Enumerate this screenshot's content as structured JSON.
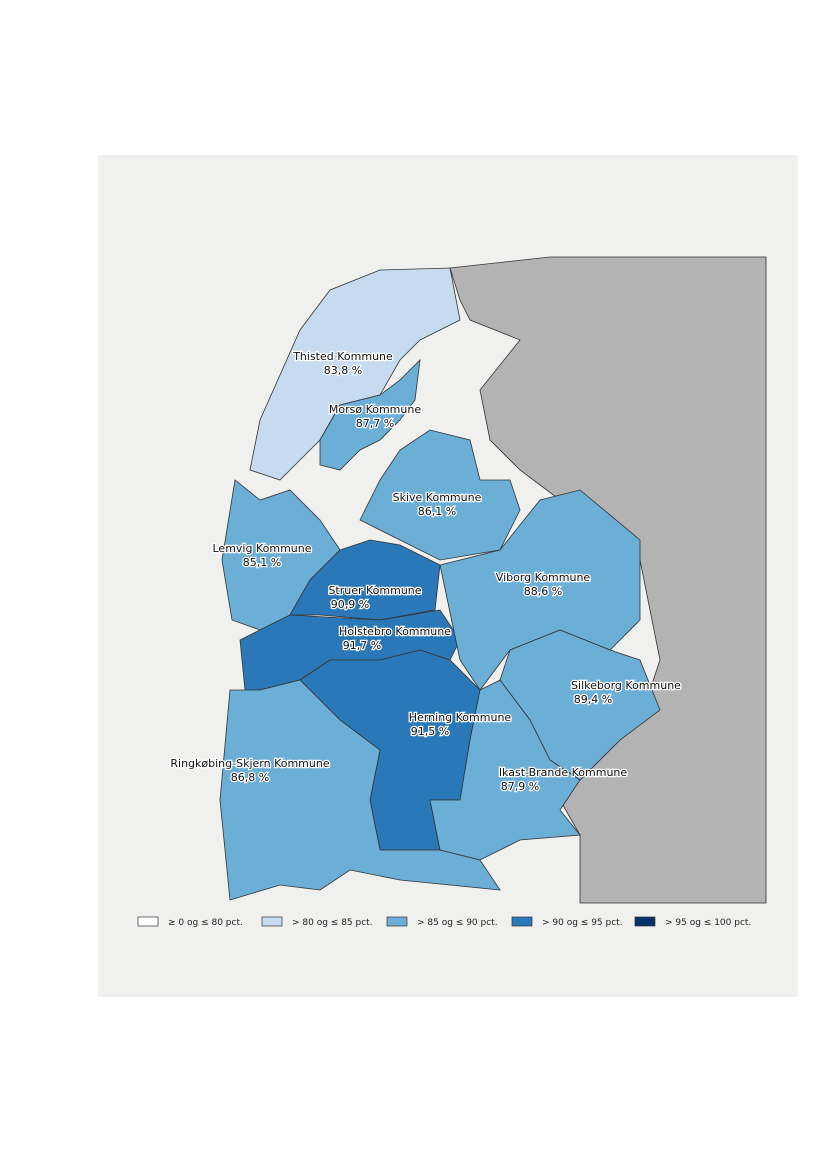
{
  "regions": [
    {
      "name": "Thisted Kommune",
      "value": "83,8 %",
      "color": "#c6dbef"
    },
    {
      "name": "Morsø Kommune",
      "value": "87,7 %",
      "color": "#6baed6"
    },
    {
      "name": "Skive Kommune",
      "value": "86,1 %",
      "color": "#6baed6"
    },
    {
      "name": "Lemvig Kommune",
      "value": "85,1 %",
      "color": "#6baed6"
    },
    {
      "name": "Struer Kommune",
      "value": "90,9 %",
      "color": "#2b78b8"
    },
    {
      "name": "Holstebro Kommune",
      "value": "91,7 %",
      "color": "#2b78b8"
    },
    {
      "name": "Viborg Kommune",
      "value": "88,6 %",
      "color": "#6baed6"
    },
    {
      "name": "Silkeborg Kommune",
      "value": "89,4 %",
      "color": "#6baed6"
    },
    {
      "name": "Herning Kommune",
      "value": "91,5 %",
      "color": "#2b78b8"
    },
    {
      "name": "Ikast-Brande Kommune",
      "value": "87,9 %",
      "color": "#6baed6"
    },
    {
      "name": "Ringkøbing-Skjern Kommune",
      "value": "86,8 %",
      "color": "#6baed6"
    }
  ],
  "legend": [
    {
      "label": "≥ 0 og ≤ 80 pct.",
      "color": "#ffffff"
    },
    {
      "label": "> 80 og ≤ 85 pct.",
      "color": "#c6dbef"
    },
    {
      "label": "> 85 og ≤ 90 pct.",
      "color": "#6baed6"
    },
    {
      "label": "> 90 og ≤ 95 pct.",
      "color": "#2b78b8"
    },
    {
      "label": "> 95 og ≤ 100 pct.",
      "color": "#08306b"
    }
  ]
}
